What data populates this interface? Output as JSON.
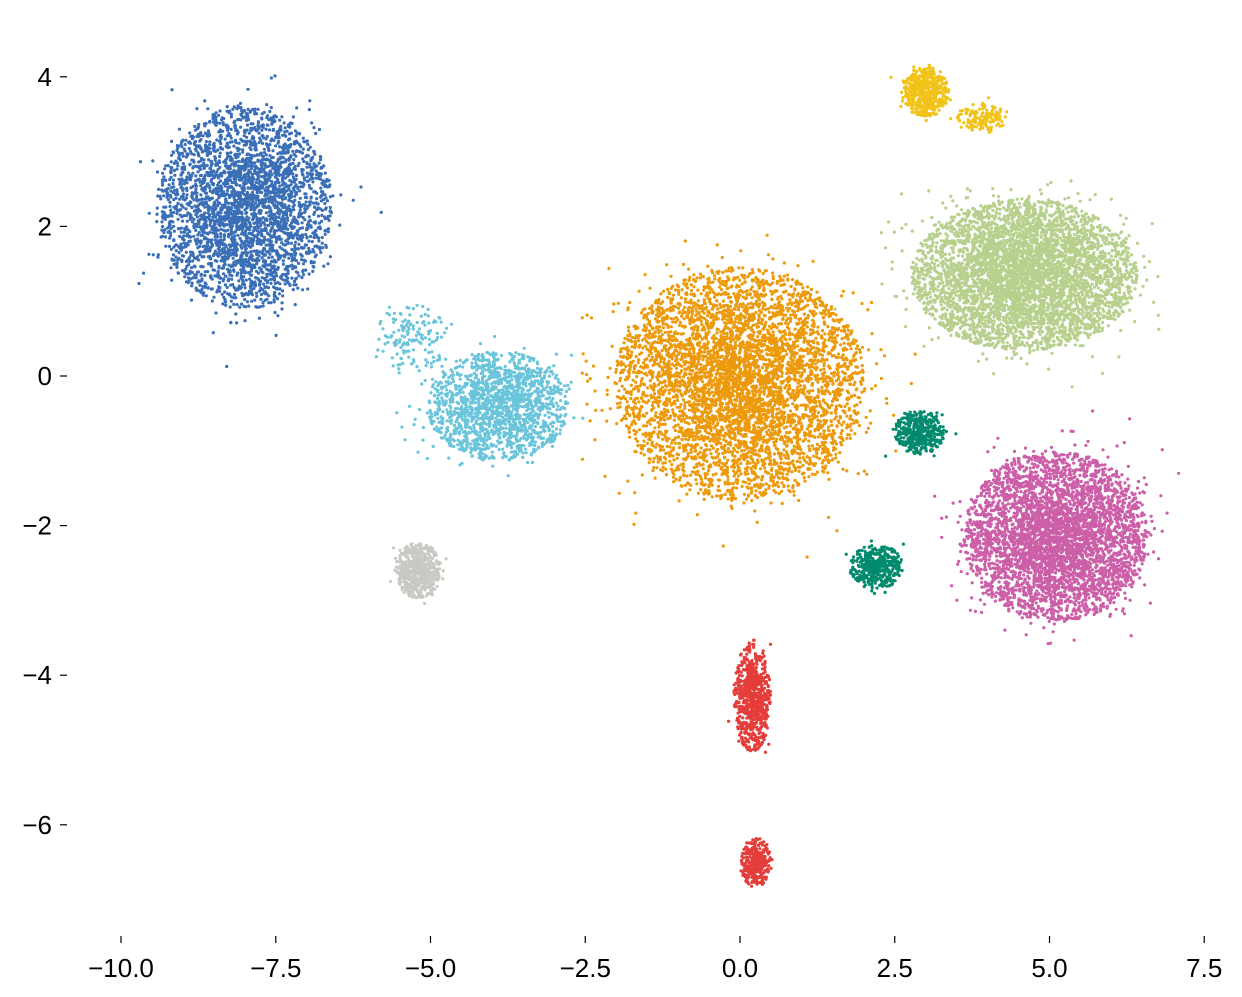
{
  "chart_data": {
    "type": "scatter",
    "title": "",
    "xlabel": "",
    "ylabel": "",
    "xlim": [
      -10.2,
      7.7
    ],
    "ylim": [
      -7.4,
      4.6
    ],
    "grid": false,
    "legend": "none",
    "x_ticks": [
      -10.0,
      -7.5,
      -5.0,
      -2.5,
      0.0,
      2.5,
      5.0,
      7.5
    ],
    "x_tick_labels": [
      "−10.0",
      "−7.5",
      "−5.0",
      "−2.5",
      "0.0",
      "2.5",
      "5.0",
      "7.5"
    ],
    "y_ticks": [
      4,
      2,
      0,
      -2,
      -4,
      -6
    ],
    "y_tick_labels": [
      "4",
      "2",
      "0",
      "−2",
      "−4",
      "−6"
    ],
    "series": [
      {
        "color": "#3a6fb7",
        "clusters": [
          {
            "center": [
              -8.0,
              2.25
            ],
            "spread": [
              1.05,
              1.0
            ],
            "count": 3200
          }
        ]
      },
      {
        "color": "#6ac4da",
        "clusters": [
          {
            "center": [
              -3.9,
              -0.4
            ],
            "spread": [
              0.85,
              0.55
            ],
            "count": 1600
          },
          {
            "center": [
              -5.3,
              0.5
            ],
            "spread": [
              0.45,
              0.35
            ],
            "count": 150
          }
        ]
      },
      {
        "color": "#c9c9c4",
        "clusters": [
          {
            "center": [
              -5.2,
              -2.6
            ],
            "spread": [
              0.28,
              0.28
            ],
            "count": 550
          }
        ]
      },
      {
        "color": "#ec9a0c",
        "clusters": [
          {
            "center": [
              0.0,
              -0.1
            ],
            "spread": [
              1.5,
              1.15
            ],
            "count": 5200
          }
        ]
      },
      {
        "color": "#e43d3a",
        "clusters": [
          {
            "center": [
              0.2,
              -4.3
            ],
            "spread": [
              0.22,
              0.55
            ],
            "count": 700
          },
          {
            "center": [
              0.25,
              -6.5
            ],
            "spread": [
              0.18,
              0.25
            ],
            "count": 300
          }
        ]
      },
      {
        "color": "#f1c319",
        "clusters": [
          {
            "center": [
              3.0,
              3.8
            ],
            "spread": [
              0.28,
              0.25
            ],
            "count": 500
          },
          {
            "center": [
              3.9,
              3.45
            ],
            "spread": [
              0.3,
              0.15
            ],
            "count": 150
          }
        ]
      },
      {
        "color": "#b8d08e",
        "clusters": [
          {
            "center": [
              4.6,
              1.35
            ],
            "spread": [
              1.35,
              0.75
            ],
            "count": 4800
          }
        ]
      },
      {
        "color": "#028a6e",
        "clusters": [
          {
            "center": [
              2.9,
              -0.75
            ],
            "spread": [
              0.3,
              0.22
            ],
            "count": 400
          },
          {
            "center": [
              2.2,
              -2.55
            ],
            "spread": [
              0.32,
              0.22
            ],
            "count": 400
          }
        ]
      },
      {
        "color": "#cc5fa8",
        "clusters": [
          {
            "center": [
              5.1,
              -2.15
            ],
            "spread": [
              1.1,
              0.85
            ],
            "count": 4200
          }
        ]
      }
    ]
  }
}
